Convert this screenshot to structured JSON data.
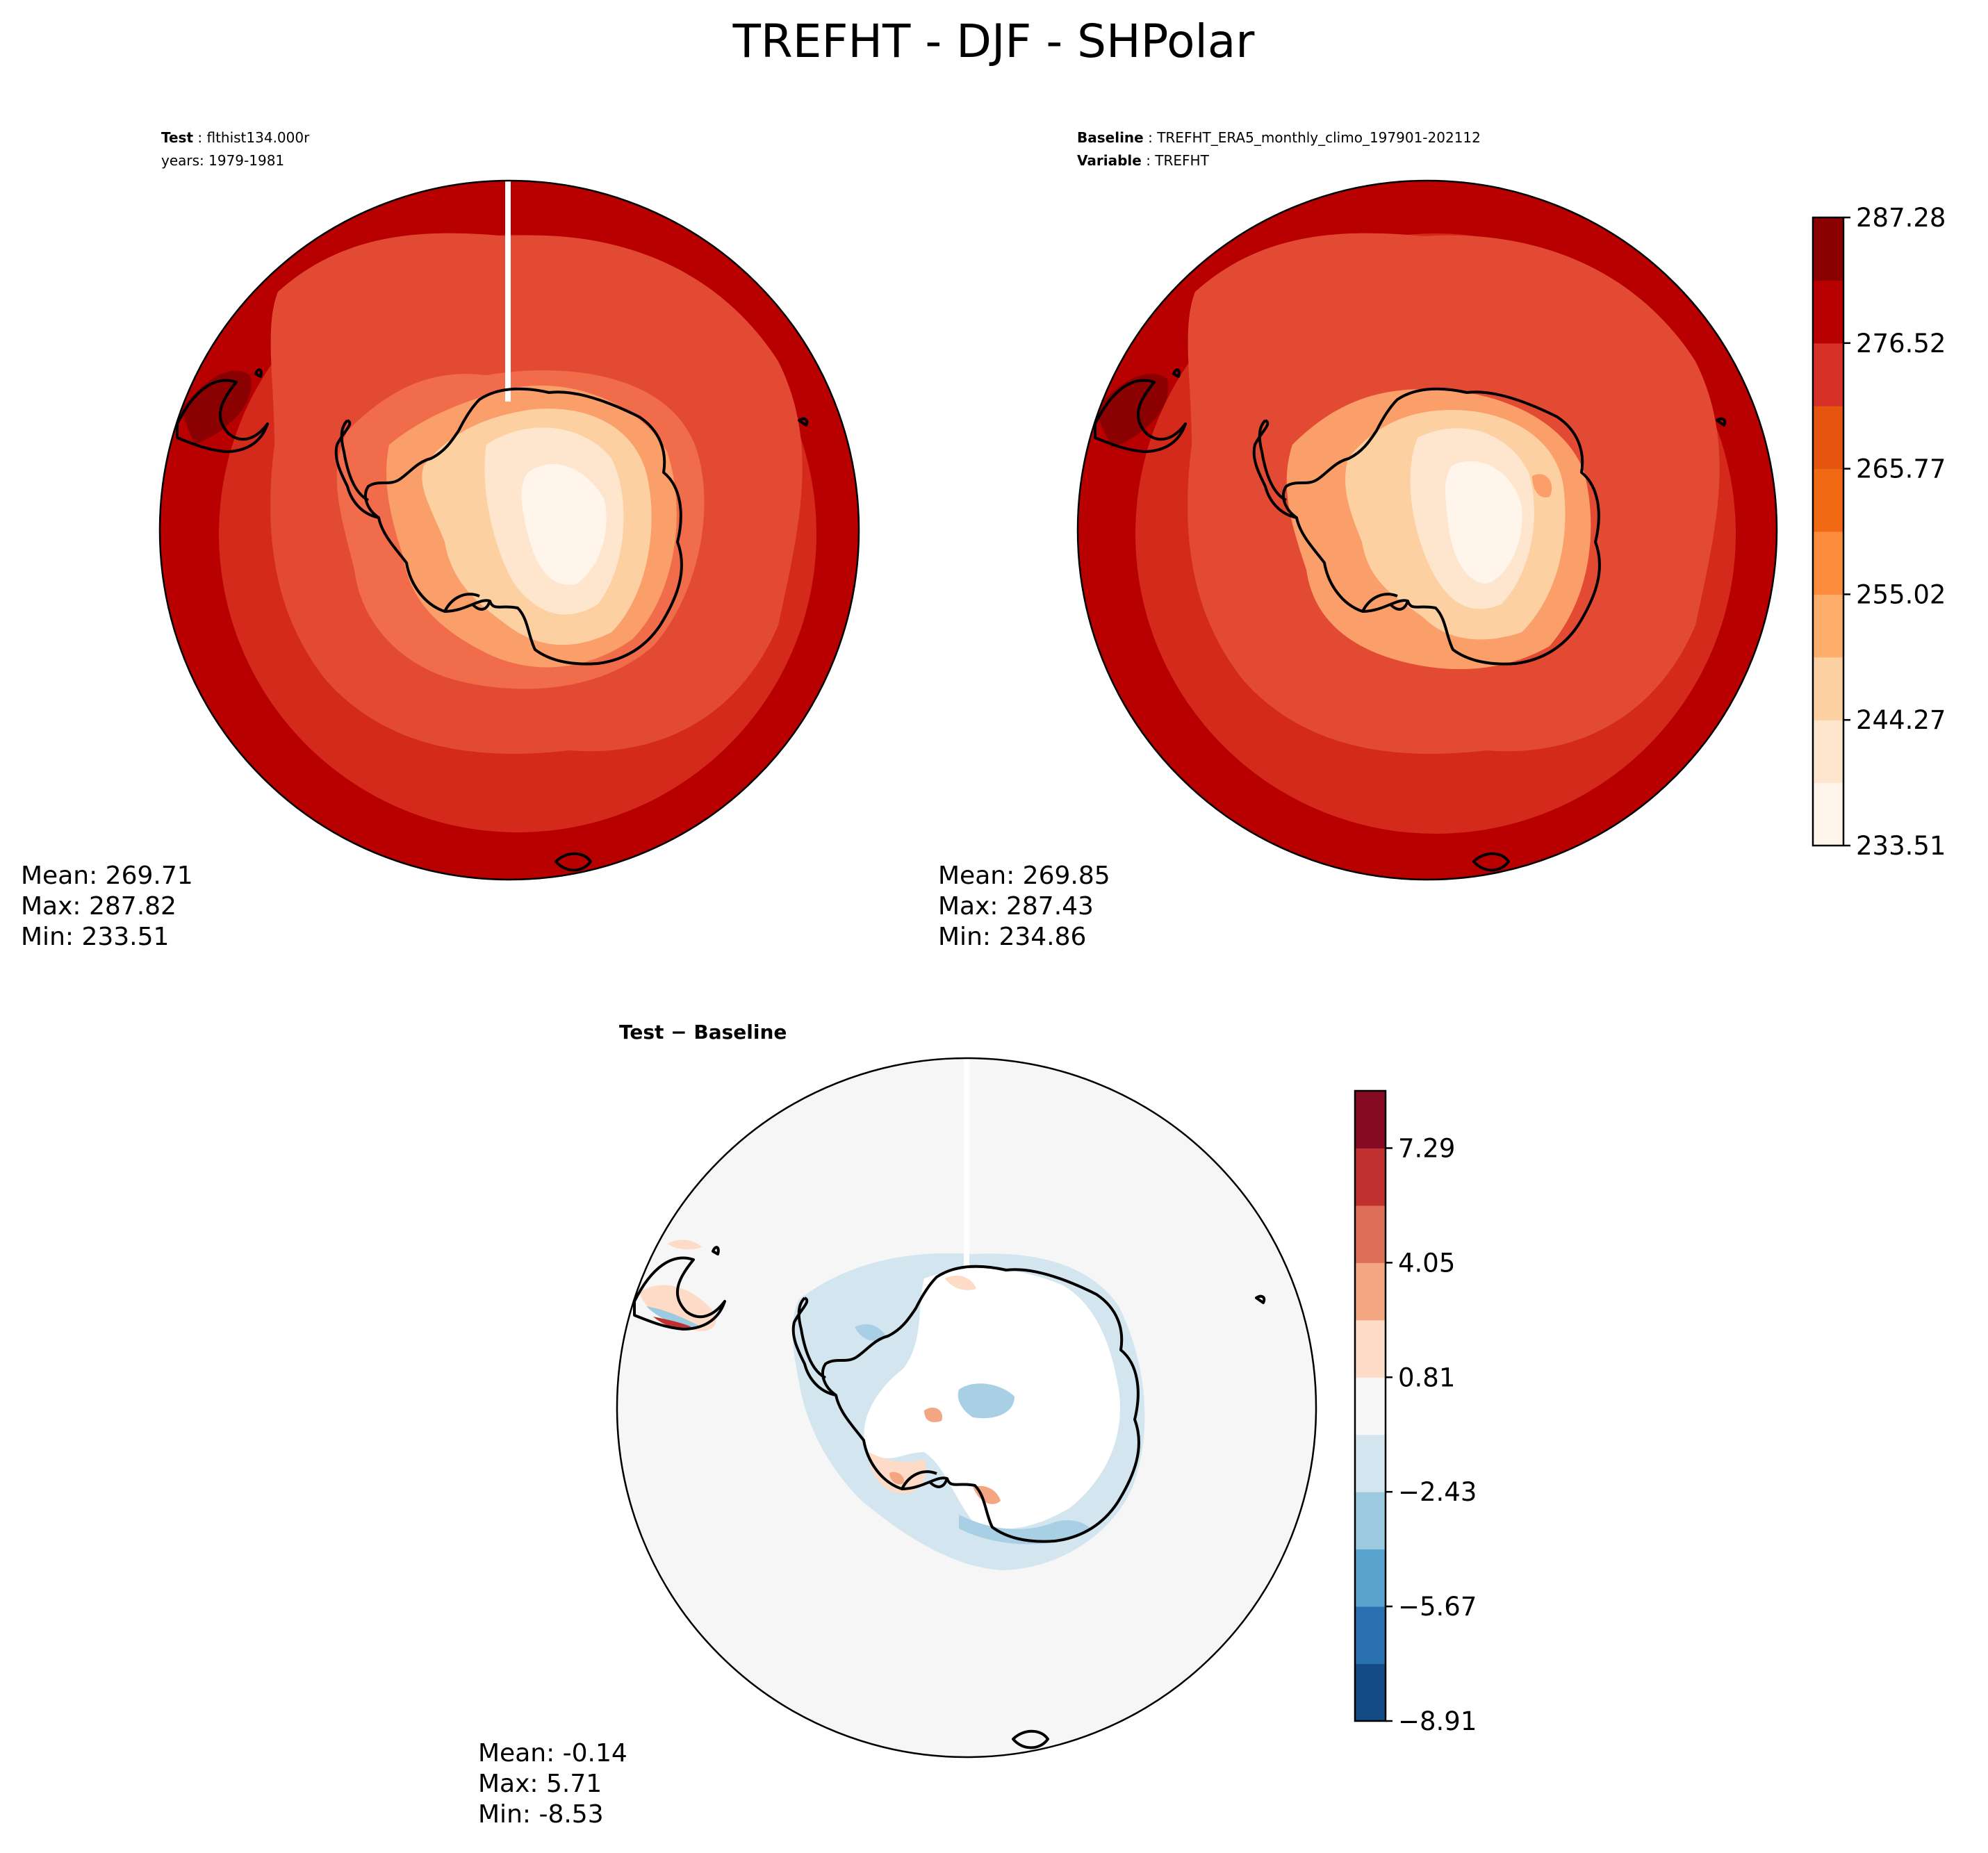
{
  "figure": {
    "title": "TREFHT - DJF - SHPolar"
  },
  "panels": {
    "test": {
      "title_label": "Test",
      "title_value": "flthist134.000r",
      "subtitle": "years: 1979-1981",
      "stats": {
        "mean": "Mean: 269.71",
        "max": "Max: 287.82",
        "min": "Min: 233.51"
      }
    },
    "baseline": {
      "title_label": "Baseline",
      "title_value": "TREFHT_ERA5_monthly_climo_197901-202112",
      "subtitle_label": "Variable",
      "subtitle_value": "TREFHT",
      "stats": {
        "mean": "Mean: 269.85",
        "max": "Max: 287.43",
        "min": "Min: 234.86"
      }
    },
    "diff": {
      "title": "Test − Baseline",
      "stats": {
        "mean": "Mean: -0.14",
        "max": "Max:  5.71",
        "min": "Min: -8.53"
      }
    }
  },
  "colorbars": {
    "temperature": {
      "ticks": [
        "233.51",
        "244.27",
        "255.02",
        "265.77",
        "276.52",
        "287.28"
      ],
      "colors": [
        "#fff5eb",
        "#fee6ce",
        "#fdd0a2",
        "#fdae6b",
        "#fd8d3c",
        "#f16913",
        "#e6550d",
        "#d73027",
        "#b80000",
        "#8b0000"
      ]
    },
    "difference": {
      "ticks": [
        "−8.91",
        "−5.67",
        "−2.43",
        "0.81",
        "4.05",
        "7.29"
      ],
      "colors": [
        "#134b87",
        "#2a71b2",
        "#5ba3cf",
        "#9ccae1",
        "#d3e6f0",
        "#f6f6f6",
        "#fddbc7",
        "#f4a683",
        "#dd6f59",
        "#c0302e",
        "#870a24"
      ]
    }
  }
}
